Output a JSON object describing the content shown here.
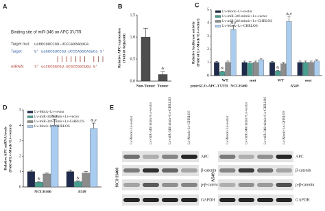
{
  "sequence_panel": {
    "panel": "A",
    "title": "Binding site of miR-346 on APC 3'UTR",
    "rows": [
      {
        "label": "Target mut:",
        "seq": "uaGGCGUCCGU-UCCCAGGAGaCA"
      },
      {
        "label": "Target:",
        "seq": "5'  uaGGCGUCCGU-UCCCAGGCAGaCa  3'"
      },
      {
        "label": "miRNA:",
        "seq": "3'  ucCGCGGCGU-UCGCCGGCUGU  5'"
      }
    ]
  },
  "chart_data": [
    {
      "type": "bar",
      "panel": "B",
      "ylabel": [
        "Relative APC expression",
        "(Fold of Adjacent)"
      ],
      "categories": [
        "Non-Tumor",
        "Tumor"
      ],
      "values": [
        1.0,
        0.15
      ],
      "errors": [
        0.2,
        0.07
      ],
      "annotations": [
        null,
        "&"
      ],
      "color": "#4d4d4d",
      "ylim": [
        0,
        1.5
      ],
      "yticks": [
        {
          "value": 0,
          "label": "0.0"
        },
        {
          "value": 0.5,
          "label": "0.5"
        },
        {
          "value": 1,
          "label": "1.0"
        },
        {
          "value": 1.5,
          "label": "1.5"
        }
      ]
    },
    {
      "type": "bar",
      "panel": "C",
      "ylabel": [
        "Relative luciferase activity",
        "(Fold of Lv-Mock+Lv-vector)"
      ],
      "categories": [
        "WT",
        "mut",
        "WT",
        "mut"
      ],
      "groups": [
        "NCI-H460",
        "A549"
      ],
      "xlabel": "pmirGLO-APC-3'UTR",
      "legend": "upper left",
      "series": [
        {
          "name": "Lv-Mock+Lv-vector",
          "color": "#1e2b4d",
          "values": [
            1.0,
            1.0,
            1.0,
            1.0
          ],
          "errors": [
            0.08,
            0.1,
            0.08,
            0.1
          ]
        },
        {
          "name": "Lv-miR-346 mimic+Lv-vector",
          "color": "#45a08f",
          "values": [
            0.3,
            0.95,
            0.35,
            1.0
          ],
          "errors": [
            0.05,
            0.1,
            0.05,
            0.1
          ],
          "annotations": [
            "&",
            null,
            "&",
            null
          ]
        },
        {
          "name": "Lv-miR-346 mimic+Lv-GHRLOS",
          "color": "#8c8c8c",
          "values": [
            1.0,
            1.0,
            0.9,
            1.0
          ],
          "errors": [
            0.1,
            0.1,
            0.1,
            0.1
          ]
        },
        {
          "name": "Lv-Mock+Lv-GHRLOS",
          "color": "#a9cdf0",
          "values": [
            3.5,
            1.2,
            4.1,
            1.1
          ],
          "errors": [
            0.3,
            0.1,
            0.35,
            0.1
          ],
          "annotations": [
            "&,#",
            null,
            "&,#",
            null
          ]
        }
      ],
      "ylim": [
        0,
        5
      ],
      "yticks": [
        0,
        1,
        2,
        3,
        4,
        5
      ]
    },
    {
      "type": "bar",
      "panel": "D",
      "ylabel": [
        "Relative APC mRNA levels",
        "(Fold of Lv-Mock+Lv-vector)"
      ],
      "categories": [
        "NCI-H460",
        "A549"
      ],
      "legend": "upper left",
      "series": [
        {
          "name": "Lv-Mock+Lv-vector",
          "color": "#1e2b4d",
          "values": [
            1.0,
            1.0
          ],
          "errors": [
            0.1,
            0.1
          ]
        },
        {
          "name": "Lv-miR-346 mimic+Lv-vector",
          "color": "#45a08f",
          "values": [
            0.3,
            0.35
          ],
          "errors": [
            0.05,
            0.05
          ],
          "annotations": [
            "&",
            "&"
          ]
        },
        {
          "name": "Lv-miR-346 mimic+Lv-GHRLOS",
          "color": "#8c8c8c",
          "values": [
            0.85,
            0.9
          ],
          "errors": [
            0.05,
            0.1
          ]
        },
        {
          "name": "Lv-Mock+Lv-GHRLOS",
          "color": "#a9cdf0",
          "values": [
            4.0,
            3.8
          ],
          "errors": [
            0.4,
            0.35
          ],
          "annotations": [
            "&,#",
            "&,#"
          ]
        }
      ],
      "ylim": [
        0,
        5
      ],
      "yticks": [
        0,
        1,
        2,
        3,
        4,
        5
      ]
    }
  ],
  "blot": {
    "panel": "E",
    "lanes": [
      "Lv-Mock+Lv-vector",
      "Lv-miR-346 mimic+Lv-vector",
      "Lv-miR-346 mimic+Lv-GHRLOS",
      "Lv-Mock+Lv-GHRLOS"
    ],
    "cells": [
      "NCI-H460",
      "A549"
    ],
    "rows": [
      "APC",
      "β-catenin",
      "p-β-catenin",
      "GAPDH"
    ]
  }
}
